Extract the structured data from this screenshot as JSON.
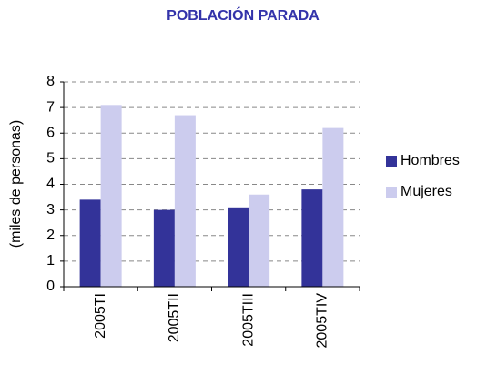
{
  "chart_data": {
    "type": "bar",
    "title": "POBLACIÓN PARADA",
    "y_label": "(miles de personas)",
    "categories": [
      "2005TI",
      "2005TII",
      "2005TIII",
      "2005TIV"
    ],
    "series": [
      {
        "name": "Hombres",
        "color": "#333399",
        "values": [
          3.4,
          3.0,
          3.1,
          3.8
        ]
      },
      {
        "name": "Mujeres",
        "color": "#ccccee",
        "values": [
          7.1,
          6.7,
          3.6,
          6.2
        ]
      }
    ],
    "ylim": [
      0,
      8
    ],
    "yticks": [
      0,
      1,
      2,
      3,
      4,
      5,
      6,
      7,
      8
    ],
    "grid": true,
    "legend": "right"
  }
}
